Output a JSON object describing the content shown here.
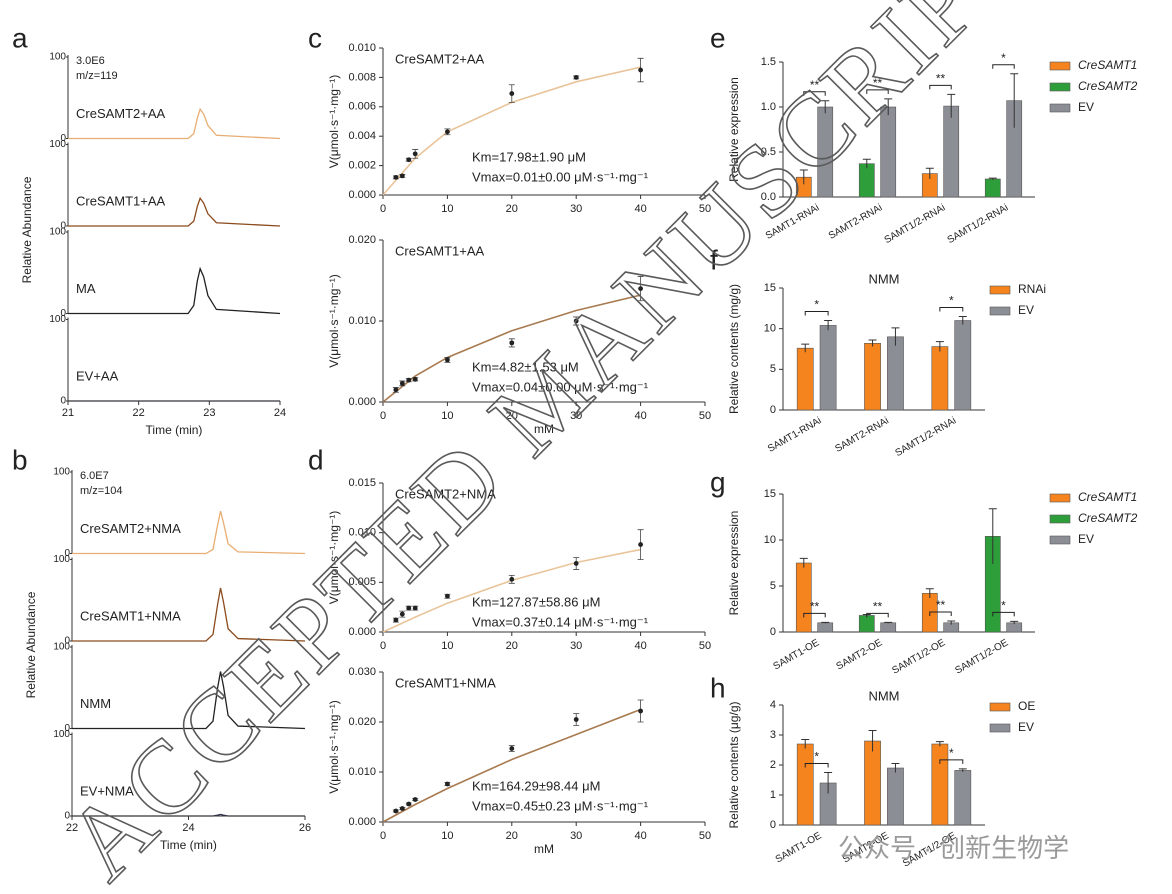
{
  "watermark": "ACCEPTED MANUSCRIPT",
  "footer_watermark": "公众号 · 创新生物学",
  "chart_data": [
    {
      "type": "chromatogram",
      "label": "a",
      "annotations": [
        "3.0E6",
        "m/z=119"
      ],
      "xlabel": "Time (min)",
      "ylabel": "Relative Abundance",
      "xlim": [
        21,
        24
      ],
      "xticks": [
        21,
        22,
        23,
        24
      ],
      "ylim": [
        0,
        100
      ],
      "yticks": [
        0,
        100
      ],
      "series": [
        {
          "name": "CreSAMT2+AA",
          "color": "#e8ad72",
          "x": [
            21,
            22.7,
            22.78,
            22.83,
            22.87,
            22.92,
            22.98,
            23.1,
            24
          ],
          "values": [
            0,
            0,
            6,
            25,
            36,
            30,
            16,
            4,
            0
          ]
        },
        {
          "name": "CreSAMT1+AA",
          "color": "#8b4a1c",
          "x": [
            21,
            22.7,
            22.78,
            22.83,
            22.87,
            22.92,
            22.98,
            23.1,
            24
          ],
          "values": [
            0,
            0,
            6,
            24,
            34,
            28,
            15,
            4,
            0
          ]
        },
        {
          "name": "MA",
          "color": "#222222",
          "x": [
            21,
            22.7,
            22.78,
            22.83,
            22.87,
            22.92,
            22.98,
            23.1,
            24
          ],
          "values": [
            0,
            0,
            10,
            40,
            55,
            45,
            22,
            5,
            0
          ]
        },
        {
          "name": "EV+AA",
          "color": "#333355",
          "x": [
            21,
            22.7,
            22.78,
            22.83,
            22.87,
            22.92,
            22.98,
            23.1,
            24
          ],
          "values": [
            0,
            0,
            0,
            0,
            0,
            0,
            0,
            0,
            0
          ]
        }
      ]
    },
    {
      "type": "chromatogram",
      "label": "b",
      "annotations": [
        "6.0E7",
        "m/z=104"
      ],
      "xlabel": "Time (min)",
      "ylabel": "Relative Abundance",
      "xlim": [
        22,
        26
      ],
      "xticks": [
        22,
        24,
        26
      ],
      "ylim": [
        0,
        100
      ],
      "yticks": [
        0,
        100
      ],
      "series": [
        {
          "name": "CreSAMT2+NMA",
          "color": "#e8ad72",
          "x": [
            22,
            24.3,
            24.42,
            24.5,
            24.55,
            24.6,
            24.68,
            24.85,
            26
          ],
          "values": [
            0,
            0,
            5,
            35,
            52,
            38,
            12,
            2,
            0
          ]
        },
        {
          "name": "CreSAMT1+NMA",
          "color": "#8b4a1c",
          "x": [
            22,
            24.3,
            24.42,
            24.5,
            24.55,
            24.6,
            24.68,
            24.85,
            26
          ],
          "values": [
            0,
            0,
            8,
            45,
            65,
            48,
            15,
            3,
            0
          ]
        },
        {
          "name": "NMM",
          "color": "#222222",
          "x": [
            22,
            24.3,
            24.42,
            24.5,
            24.55,
            24.6,
            24.68,
            24.85,
            26
          ],
          "values": [
            0,
            0,
            9,
            50,
            70,
            52,
            16,
            3,
            0
          ]
        },
        {
          "name": "EV+NMA",
          "color": "#333355",
          "x": [
            22,
            24.3,
            24.42,
            24.5,
            24.55,
            24.6,
            24.68,
            24.85,
            26
          ],
          "values": [
            0,
            0,
            0,
            1,
            2,
            1,
            0,
            0,
            0
          ]
        }
      ]
    },
    {
      "type": "kinetics",
      "label": "c",
      "title": "CreSAMT2+AA",
      "annotations": [
        "Km=17.98±1.90 μM",
        "Vmax=0.01±0.00 μM·s⁻¹·mg⁻¹"
      ],
      "ylabel": "V(μmol·s⁻¹·mg⁻¹)",
      "xlim": [
        0,
        50
      ],
      "xticks": [
        0,
        10,
        20,
        30,
        40,
        50
      ],
      "ylim": [
        0,
        0.01
      ],
      "yticks": [
        {
          "value": 0,
          "label": "0.000"
        },
        {
          "value": 0.002,
          "label": "0.002"
        },
        {
          "value": 0.004,
          "label": "0.004"
        },
        {
          "value": 0.006,
          "label": "0.006"
        },
        {
          "value": 0.008,
          "label": "0.008"
        },
        {
          "value": 0.01,
          "label": "0.010"
        }
      ],
      "x": [
        2,
        3,
        4,
        5,
        10,
        20,
        30,
        40
      ],
      "values": [
        0.0012,
        0.0013,
        0.0024,
        0.0028,
        0.0043,
        0.0069,
        0.008,
        0.0085
      ],
      "errors": [
        0.0001,
        0.0001,
        0.0001,
        0.0003,
        0.0002,
        0.0006,
        0.0001,
        0.0008
      ],
      "fit": {
        "color": "#e9c49a",
        "x": [
          0,
          5,
          10,
          20,
          30,
          40
        ],
        "values": [
          0,
          0.0025,
          0.0043,
          0.0063,
          0.0077,
          0.0087
        ]
      }
    },
    {
      "type": "kinetics",
      "title": "CreSAMT1+AA",
      "annotations": [
        "Km=4.82±1.53 μM",
        "Vmax=0.04±0.00 μM·s⁻¹·mg⁻¹"
      ],
      "ylabel": "V(μmol·s⁻¹·mg⁻¹)",
      "xlabel": "mM",
      "xlim": [
        0,
        50
      ],
      "xticks": [
        0,
        10,
        20,
        30,
        40,
        50
      ],
      "ylim": [
        0,
        0.02
      ],
      "yticks": [
        {
          "value": 0,
          "label": "0.000"
        },
        {
          "value": 0.01,
          "label": "0.010"
        },
        {
          "value": 0.02,
          "label": "0.020"
        }
      ],
      "x": [
        2,
        3,
        4,
        5,
        10,
        20,
        30,
        40
      ],
      "values": [
        0.0015,
        0.0023,
        0.0027,
        0.0028,
        0.0052,
        0.0073,
        0.01,
        0.014
      ],
      "errors": [
        0.0003,
        0.0003,
        0.0002,
        0.0002,
        0.0003,
        0.0005,
        0.0005,
        0.0015
      ],
      "fit": {
        "color": "#a87a50",
        "x": [
          0,
          5,
          10,
          20,
          30,
          40
        ],
        "values": [
          0,
          0.0032,
          0.0055,
          0.0088,
          0.0113,
          0.0132
        ]
      }
    },
    {
      "type": "kinetics",
      "label": "d",
      "title": "CreSAMT2+NMA",
      "annotations": [
        "Km=127.87±58.86 μM",
        "Vmax=0.37±0.14 μM·s⁻¹·mg⁻¹"
      ],
      "ylabel": "V(μmol·s⁻¹·mg⁻¹)",
      "xlim": [
        0,
        50
      ],
      "xticks": [
        0,
        10,
        20,
        30,
        40,
        50
      ],
      "ylim": [
        0,
        0.015
      ],
      "yticks": [
        {
          "value": 0,
          "label": "0.000"
        },
        {
          "value": 0.005,
          "label": "0.005"
        },
        {
          "value": 0.01,
          "label": "0.010"
        },
        {
          "value": 0.015,
          "label": "0.015"
        }
      ],
      "x": [
        2,
        3,
        4,
        5,
        10,
        20,
        30,
        40
      ],
      "values": [
        0.0012,
        0.0018,
        0.0024,
        0.0024,
        0.0036,
        0.0053,
        0.0069,
        0.0088
      ],
      "errors": [
        0.0002,
        0.0003,
        0.0002,
        0.0002,
        0.0002,
        0.0004,
        0.0006,
        0.0015
      ],
      "fit": {
        "color": "#e9c49a",
        "x": [
          0,
          5,
          10,
          20,
          30,
          40
        ],
        "values": [
          0,
          0.0015,
          0.0029,
          0.0052,
          0.007,
          0.0083
        ]
      }
    },
    {
      "type": "kinetics",
      "title": "CreSAMT1+NMA",
      "annotations": [
        "Km=164.29±98.44 μM",
        "Vmax=0.45±0.23 μM·s⁻¹·mg⁻¹"
      ],
      "ylabel": "V(μmol·s⁻¹·mg⁻¹)",
      "xlabel": "mM",
      "xlim": [
        0,
        50
      ],
      "xticks": [
        0,
        10,
        20,
        30,
        40,
        50
      ],
      "ylim": [
        0,
        0.03
      ],
      "yticks": [
        {
          "value": 0,
          "label": "0.000"
        },
        {
          "value": 0.01,
          "label": "0.010"
        },
        {
          "value": 0.02,
          "label": "0.020"
        },
        {
          "value": 0.03,
          "label": "0.030"
        }
      ],
      "x": [
        2,
        3,
        4,
        5,
        10,
        20,
        30,
        40
      ],
      "values": [
        0.0022,
        0.0027,
        0.0036,
        0.0045,
        0.0076,
        0.0147,
        0.0205,
        0.0222
      ],
      "errors": [
        0.0002,
        0.0002,
        0.0002,
        0.0002,
        0.0003,
        0.0006,
        0.0012,
        0.0022
      ],
      "fit": {
        "color": "#a87a50",
        "x": [
          0,
          5,
          10,
          20,
          30,
          40
        ],
        "values": [
          0,
          0.0035,
          0.0067,
          0.0125,
          0.0175,
          0.0225
        ]
      }
    },
    {
      "type": "bar",
      "label": "e",
      "ylabel": "Relative expression",
      "legend": "right",
      "categories": [
        "SAMT1-RNAi",
        "SAMT2-RNAi",
        "SAMT1/2-RNAi",
        "SAMT1/2-RNAi"
      ],
      "ylim": [
        0,
        1.5
      ],
      "yticks": [
        {
          "value": 0,
          "label": "0.0"
        },
        {
          "value": 0.5,
          "label": "0.5"
        },
        {
          "value": 1,
          "label": "1.0"
        },
        {
          "value": 1.5,
          "label": "1.5"
        }
      ],
      "significance": [
        "**",
        "**",
        "**",
        "*"
      ],
      "series": [
        {
          "name": "CreSAMT1",
          "italic": true,
          "color": "#f5841f",
          "values": [
            0.22,
            null,
            0.26,
            null
          ],
          "errors": [
            0.08,
            null,
            0.06,
            null
          ]
        },
        {
          "name": "CreSAMT2",
          "italic": true,
          "color": "#2e9e3a",
          "values": [
            null,
            0.37,
            null,
            0.2
          ],
          "errors": [
            null,
            0.05,
            null,
            0.01
          ]
        },
        {
          "name": "EV",
          "italic": false,
          "color": "#8c8e95",
          "values": [
            1.0,
            1.0,
            1.01,
            1.07
          ],
          "errors": [
            0.07,
            0.09,
            0.13,
            0.3
          ]
        }
      ]
    },
    {
      "type": "bar",
      "label": "f",
      "title": "NMM",
      "ylabel": "Relative contents (mg/g)",
      "legend": "right",
      "categories": [
        "SAMT1-RNAi",
        "SAMT2-RNAi",
        "SAMT1/2-RNAi"
      ],
      "ylim": [
        0,
        15
      ],
      "yticks": [
        0,
        5,
        10,
        15
      ],
      "significance": [
        "*",
        null,
        "*"
      ],
      "series": [
        {
          "name": "RNAi",
          "italic": false,
          "color": "#f5841f",
          "values": [
            7.6,
            8.2,
            7.8
          ],
          "errors": [
            0.5,
            0.4,
            0.6
          ]
        },
        {
          "name": "EV",
          "italic": false,
          "color": "#8c8e95",
          "values": [
            10.4,
            9.0,
            11.0
          ],
          "errors": [
            0.6,
            1.1,
            0.5
          ]
        }
      ]
    },
    {
      "type": "bar",
      "label": "g",
      "ylabel": "Relative expression",
      "legend": "right",
      "categories": [
        "SAMT1-OE",
        "SAMT2-OE",
        "SAMT1/2-OE",
        "SAMT1/2-OE"
      ],
      "ylim": [
        0,
        15
      ],
      "yticks": [
        0,
        5,
        10,
        15
      ],
      "significance": [
        "**",
        "**",
        "**",
        "*"
      ],
      "series": [
        {
          "name": "CreSAMT1",
          "italic": true,
          "color": "#f5841f",
          "values": [
            7.5,
            null,
            4.2,
            null
          ],
          "errors": [
            0.5,
            null,
            0.5,
            null
          ]
        },
        {
          "name": "CreSAMT2",
          "italic": true,
          "color": "#2e9e3a",
          "values": [
            null,
            1.8,
            null,
            10.4
          ],
          "errors": [
            null,
            0.1,
            null,
            3.0
          ]
        },
        {
          "name": "EV",
          "italic": false,
          "color": "#8c8e95",
          "values": [
            1.0,
            1.0,
            1.0,
            1.0
          ],
          "errors": [
            0.05,
            0.05,
            0.2,
            0.15
          ]
        }
      ]
    },
    {
      "type": "bar",
      "label": "h",
      "title": "NMM",
      "ylabel": "Relative contents (μg/g)",
      "legend": "right",
      "categories": [
        "SAMT1-OE",
        "SAMT2-OE",
        "SAMT1/2-OE"
      ],
      "ylim": [
        0,
        4
      ],
      "yticks": [
        0,
        1,
        2,
        3,
        4
      ],
      "significance": [
        "*",
        null,
        "*"
      ],
      "series": [
        {
          "name": "OE",
          "italic": false,
          "color": "#f5841f",
          "values": [
            2.7,
            2.8,
            2.7
          ],
          "errors": [
            0.15,
            0.35,
            0.08
          ]
        },
        {
          "name": "EV",
          "italic": false,
          "color": "#8c8e95",
          "values": [
            1.4,
            1.9,
            1.82
          ],
          "errors": [
            0.35,
            0.15,
            0.05
          ]
        }
      ]
    }
  ]
}
